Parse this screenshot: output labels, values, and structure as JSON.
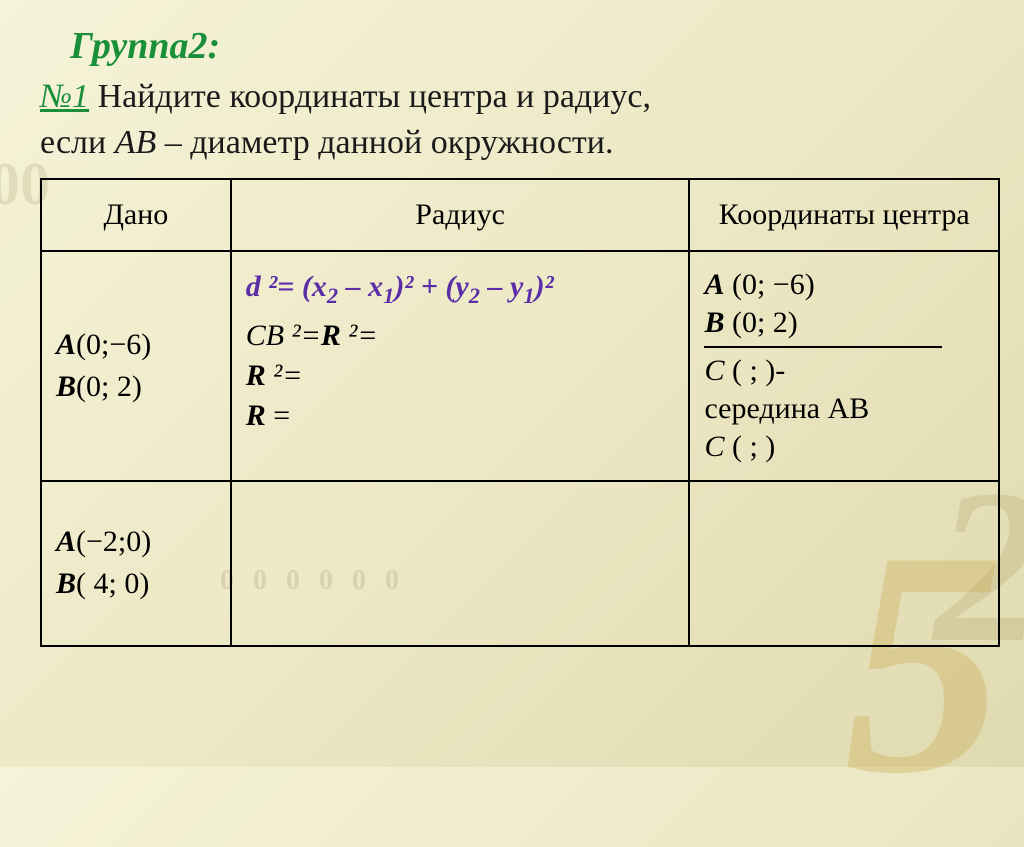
{
  "background": {
    "gradient": [
      "#f5f3d8",
      "#ede8c5",
      "#e0dab0"
    ],
    "decorations": {
      "topLeft00": "00",
      "right2": "2",
      "bottom5": "5",
      "smallBg": "0 0 0 0 0 0"
    }
  },
  "header": {
    "groupTitle": "Группа2:",
    "groupTitleColor": "#1a8f3a",
    "problemNumber": "№1",
    "problemText1": "Найдите координаты центра и радиус,",
    "problemText2_pre": "если ",
    "problemText2_AB": "АВ",
    "problemText2_post": " – диаметр данной окружности."
  },
  "table": {
    "headers": {
      "dano": "Дано",
      "radius": "Радиус",
      "coord": "Координаты центра"
    },
    "row1": {
      "dano": {
        "A_label": "A",
        "A_coords": "(0;−6)",
        "B_label": "B",
        "B_coords": "(0; 2)"
      },
      "radius": {
        "formula_d": "d",
        "formula_eq": " ²= (",
        "formula_x2": "x",
        "formula_sub2": "2",
        "formula_minus": " – ",
        "formula_x1": "x",
        "formula_sub1": "1",
        "formula_mid": ")² + (",
        "formula_y2": "y",
        "formula_y1": "y",
        "formula_end": ")²",
        "line2_CB": "CB",
        "line2_eq": " ²=",
        "line2_R": "R",
        "line2_end": " ²=",
        "line3_R": "R",
        "line3_end": " ²=",
        "line4_R": "R",
        "line4_end": " ="
      },
      "coord": {
        "A_label": "A",
        "A_coords": " (0; −6)",
        "B_label": "B",
        "B_coords": " (0;    2)",
        "C1_label": "С",
        "C1_coords": " (       ;       )-",
        "mid_text": "середина АВ",
        "C2_label": "С",
        "C2_coords": " (      ;      )"
      }
    },
    "row2": {
      "dano": {
        "A_label": "A",
        "A_coords": "(−2;0)",
        "B_label": "B",
        "B_coords": "( 4; 0)"
      }
    }
  },
  "styling": {
    "purple": "#5b2ea8",
    "green": "#1a8f3a",
    "black": "#000000",
    "fontBody": "Times New Roman",
    "fontSizeTitle": 38,
    "fontSizeText": 34,
    "fontSizeCell": 30,
    "tableBorderWidth": 2
  }
}
